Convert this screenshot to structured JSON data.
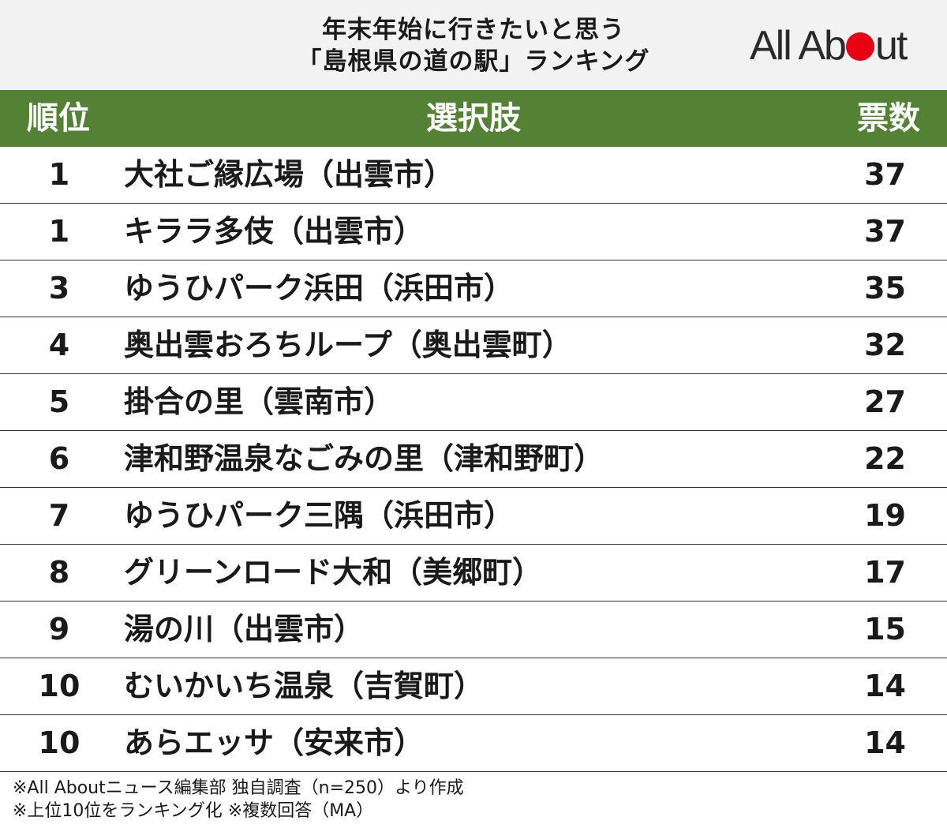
{
  "header": {
    "title_line1": "年末年始に行きたいと思う",
    "title_line2": "「島根県の道の駅」ランキング",
    "logo_part1": "All Ab",
    "logo_part2": "ut",
    "logo_circle_color": "#e60012"
  },
  "table": {
    "header_color": "#548235",
    "columns": [
      "順位",
      "選択肢",
      "票数"
    ]
  },
  "chart_data": {
    "type": "table",
    "title": "年末年始に行きたいと思う「島根県の道の駅」ランキング",
    "columns": [
      "順位",
      "選択肢",
      "票数"
    ],
    "rows": [
      {
        "rank": "1",
        "choice": "大社ご縁広場（出雲市）",
        "votes": "37"
      },
      {
        "rank": "1",
        "choice": "キララ多伎（出雲市）",
        "votes": "37"
      },
      {
        "rank": "3",
        "choice": "ゆうひパーク浜田（浜田市）",
        "votes": "35"
      },
      {
        "rank": "4",
        "choice": "奥出雲おろちループ（奥出雲町）",
        "votes": "32"
      },
      {
        "rank": "5",
        "choice": "掛合の里（雲南市）",
        "votes": "27"
      },
      {
        "rank": "6",
        "choice": "津和野温泉なごみの里（津和野町）",
        "votes": "22"
      },
      {
        "rank": "7",
        "choice": "ゆうひパーク三隅（浜田市）",
        "votes": "19"
      },
      {
        "rank": "8",
        "choice": "グリーンロード大和（美郷町）",
        "votes": "17"
      },
      {
        "rank": "9",
        "choice": "湯の川（出雲市）",
        "votes": "15"
      },
      {
        "rank": "10",
        "choice": "むいかいち温泉（吉賀町）",
        "votes": "14"
      },
      {
        "rank": "10",
        "choice": "あらエッサ（安来市）",
        "votes": "14"
      }
    ]
  },
  "notes": {
    "line1": "※All Aboutニュース編集部 独自調査（n=250）より作成",
    "line2": "※上位10位をランキング化 ※複数回答（MA）"
  }
}
